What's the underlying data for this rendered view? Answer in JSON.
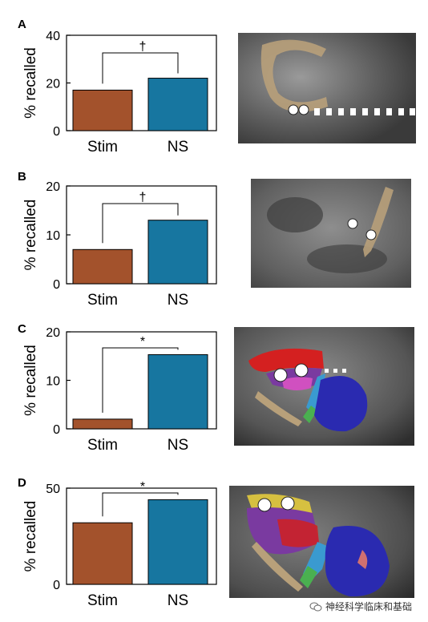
{
  "panels": [
    {
      "letter": "A"
    },
    {
      "letter": "B"
    },
    {
      "letter": "C"
    },
    {
      "letter": "D"
    }
  ],
  "colors": {
    "stim": "#a3522c",
    "ns": "#1776a0"
  },
  "chart_data": [
    {
      "type": "bar",
      "categories": [
        "Stim",
        "NS"
      ],
      "values": [
        17,
        22
      ],
      "ylabel": "% recalled",
      "ylim": [
        0,
        40
      ],
      "yticks": [
        0,
        20,
        40
      ],
      "significance": "†"
    },
    {
      "type": "bar",
      "categories": [
        "Stim",
        "NS"
      ],
      "values": [
        7,
        13
      ],
      "ylabel": "% recalled",
      "ylim": [
        0,
        20
      ],
      "yticks": [
        0,
        10,
        20
      ],
      "significance": "†"
    },
    {
      "type": "bar",
      "categories": [
        "Stim",
        "NS"
      ],
      "values": [
        2,
        15.3
      ],
      "ylabel": "% recalled",
      "ylim": [
        0,
        20
      ],
      "yticks": [
        0,
        10,
        20
      ],
      "significance": "*"
    },
    {
      "type": "bar",
      "categories": [
        "Stim",
        "NS"
      ],
      "values": [
        32,
        44
      ],
      "ylabel": "% recalled",
      "ylim": [
        0,
        50
      ],
      "yticks": [
        0,
        50
      ],
      "significance": "*"
    }
  ],
  "watermark": "神经科学临床和基础"
}
